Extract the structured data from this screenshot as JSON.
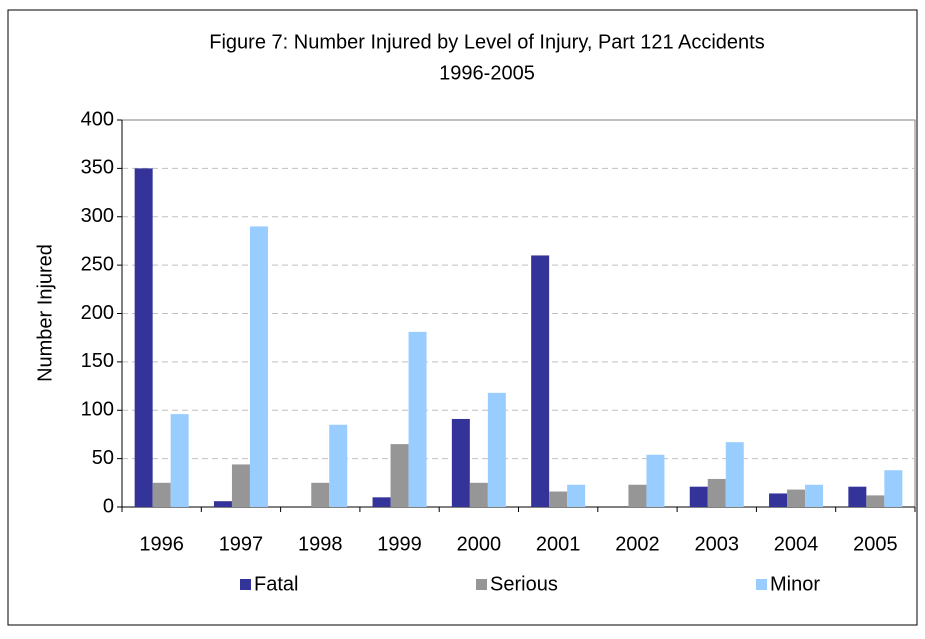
{
  "chart_data": {
    "type": "bar",
    "title": "Figure 7:  Number Injured by Level of Injury, Part 121 Accidents",
    "subtitle": "1996-2005",
    "y_label": "Number Injured",
    "categories": [
      "1996",
      "1997",
      "1998",
      "1999",
      "2000",
      "2001",
      "2002",
      "2003",
      "2004",
      "2005"
    ],
    "series": [
      {
        "name": "Fatal",
        "color": "#333399",
        "values": [
          350,
          6,
          0,
          10,
          91,
          260,
          0,
          21,
          14,
          21
        ]
      },
      {
        "name": "Serious",
        "color": "#969696",
        "values": [
          25,
          44,
          25,
          65,
          25,
          16,
          23,
          29,
          18,
          12
        ]
      },
      {
        "name": "Minor",
        "color": "#99ccff",
        "values": [
          96,
          290,
          85,
          181,
          118,
          23,
          54,
          67,
          23,
          38
        ]
      }
    ],
    "ylim": [
      0,
      400
    ],
    "yticks": [
      0,
      50,
      100,
      150,
      200,
      250,
      300,
      350,
      400
    ],
    "grid": true,
    "legend": "bottom"
  }
}
